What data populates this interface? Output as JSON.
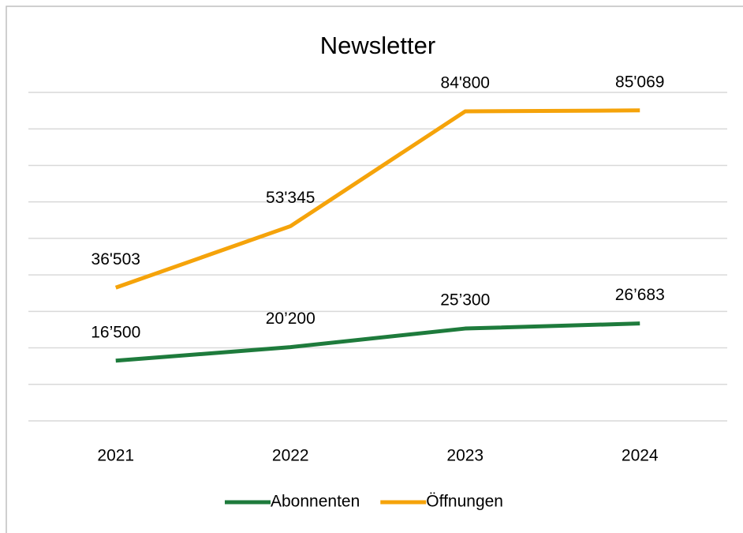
{
  "chart_data": {
    "type": "line",
    "title": "Newsletter",
    "categories": [
      "2021",
      "2022",
      "2023",
      "2024"
    ],
    "series": [
      {
        "name": "Abonnenten",
        "color": "#1e7b3c",
        "values": [
          16500,
          20200,
          25300,
          26683
        ],
        "value_labels": [
          "16’500",
          "20’200",
          "25’300",
          "26’683"
        ]
      },
      {
        "name": "Öffnungen",
        "color": "#f5a30a",
        "values": [
          36503,
          53345,
          84800,
          85069
        ],
        "value_labels": [
          "36'503",
          "53'345",
          "84'800",
          "85'069"
        ]
      }
    ],
    "ylim": [
      0,
      90000
    ],
    "yticks": [
      0,
      10000,
      20000,
      30000,
      40000,
      50000,
      60000,
      70000,
      80000,
      90000
    ],
    "grid": true
  }
}
